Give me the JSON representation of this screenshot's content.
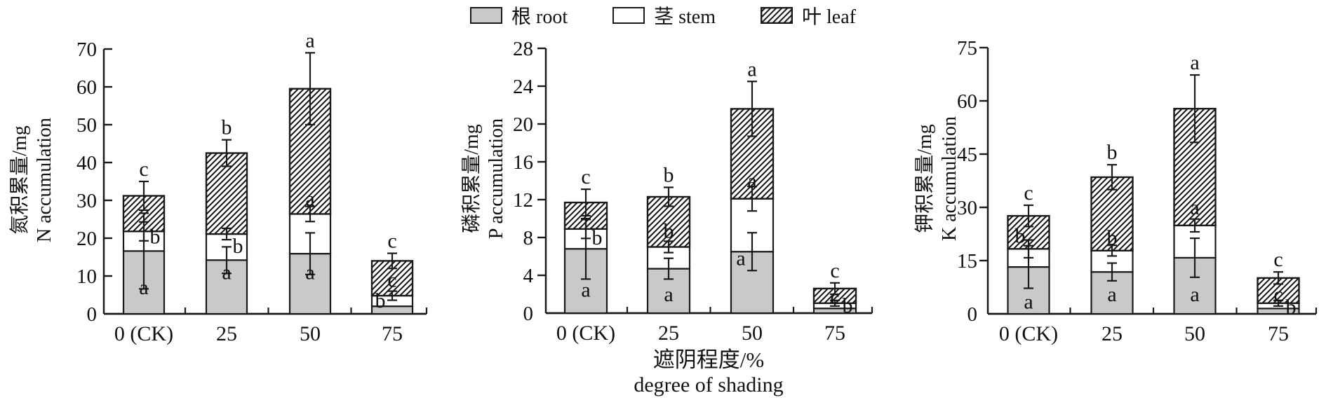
{
  "legend": {
    "items": [
      {
        "label": "根 root",
        "swatch": "gray"
      },
      {
        "label": "茎 stem",
        "swatch": "white"
      },
      {
        "label": "叶 leaf",
        "swatch": "hatch"
      }
    ]
  },
  "colors": {
    "line": "#1a1a1a",
    "root_fill": "#c9c9c9",
    "stem_fill": "#ffffff",
    "hatch_line": "#1a1a1a"
  },
  "x_axis_title": {
    "cn": "遮阴程度/%",
    "en": "degree of shading"
  },
  "chart_data": [
    {
      "type": "bar",
      "stacked": true,
      "y_title_cn": "氮积累量/mg",
      "y_title_en": "N accumulation",
      "ylim": [
        0,
        70
      ],
      "yticks": [
        0,
        10,
        20,
        30,
        40,
        50,
        60,
        70
      ],
      "categories": [
        "0 (CK)",
        "25",
        "50",
        "75"
      ],
      "series_names": [
        "root",
        "stem",
        "leaf"
      ],
      "bars": [
        {
          "category": "0 (CK)",
          "root": 16.6,
          "stem": 5.2,
          "leaf": 9.4,
          "err_root": 10.0,
          "err_stem": 2.5,
          "err_total": 3.8,
          "top_letter": "c",
          "letters": [
            {
              "at": 7.0,
              "text": "a",
              "dx": 0
            },
            {
              "at": 20.5,
              "text": "b",
              "dx": 16
            }
          ]
        },
        {
          "category": "25",
          "root": 14.2,
          "stem": 6.9,
          "leaf": 21.4,
          "err_root": 3.5,
          "err_stem": 1.5,
          "err_total": 3.5,
          "top_letter": "b",
          "letters": [
            {
              "at": 11.0,
              "text": "a",
              "dx": 0
            },
            {
              "at": 18.0,
              "text": "b",
              "dx": 16
            }
          ]
        },
        {
          "category": "50",
          "root": 15.9,
          "stem": 10.5,
          "leaf": 33.1,
          "err_root": 5.5,
          "err_stem": 2.0,
          "err_total": 9.5,
          "top_letter": "a",
          "letters": [
            {
              "at": 11.0,
              "text": "a",
              "dx": 0
            },
            {
              "at": 30.5,
              "text": "a",
              "dx": 0
            }
          ]
        },
        {
          "category": "75",
          "root": 2.0,
          "stem": 2.8,
          "leaf": 9.2,
          "err_stem": 1.2,
          "err_total": 2.0,
          "top_letter": "c",
          "letters": [
            {
              "at": 3.5,
              "text": "b",
              "dx": -17
            },
            {
              "at": 9.0,
              "text": "c",
              "dx": 0
            }
          ]
        }
      ]
    },
    {
      "type": "bar",
      "stacked": true,
      "y_title_cn": "磷积累量/mg",
      "y_title_en": "P accumulation",
      "ylim": [
        0,
        28
      ],
      "yticks": [
        0,
        4,
        8,
        12,
        16,
        20,
        24,
        28
      ],
      "categories": [
        "0 (CK)",
        "25",
        "50",
        "75"
      ],
      "series_names": [
        "root",
        "stem",
        "leaf"
      ],
      "bars": [
        {
          "category": "0 (CK)",
          "root": 6.8,
          "stem": 2.1,
          "leaf": 2.8,
          "err_root": 3.2,
          "err_stem": 1.0,
          "err_total": 1.4,
          "top_letter": "c",
          "letters": [
            {
              "at": 2.5,
              "text": "a",
              "dx": 0
            },
            {
              "at": 8.0,
              "text": "b",
              "dx": 16
            }
          ]
        },
        {
          "category": "25",
          "root": 4.7,
          "stem": 2.3,
          "leaf": 5.3,
          "err_root": 1.1,
          "err_stem": 0.6,
          "err_total": 1.0,
          "top_letter": "b",
          "letters": [
            {
              "at": 2.0,
              "text": "a",
              "dx": 0
            },
            {
              "at": 8.7,
              "text": "b",
              "dx": 0
            }
          ]
        },
        {
          "category": "50",
          "root": 6.5,
          "stem": 5.6,
          "leaf": 9.5,
          "err_root": 2.0,
          "err_stem": 1.3,
          "err_total": 2.9,
          "top_letter": "a",
          "letters": [
            {
              "at": 5.8,
              "text": "a",
              "dx": -16
            },
            {
              "at": 14.0,
              "text": "a",
              "dx": 0
            }
          ]
        },
        {
          "category": "75",
          "root": 0.5,
          "stem": 0.55,
          "leaf": 1.55,
          "err_stem": 0.3,
          "err_total": 0.6,
          "top_letter": "c",
          "letters": [
            {
              "at": 1.7,
              "text": "c",
              "dx": 0
            },
            {
              "at": 0.8,
              "text": "b",
              "dx": 18
            }
          ]
        }
      ]
    },
    {
      "type": "bar",
      "stacked": true,
      "y_title_cn": "钾积累量/mg",
      "y_title_en": "K accumulation",
      "ylim": [
        0,
        75
      ],
      "yticks": [
        0,
        15,
        30,
        45,
        60,
        75
      ],
      "categories": [
        "0 (CK)",
        "25",
        "50",
        "75"
      ],
      "series_names": [
        "root",
        "stem",
        "leaf"
      ],
      "bars": [
        {
          "category": "0 (CK)",
          "root": 13.2,
          "stem": 5.1,
          "leaf": 9.3,
          "err_root": 6.0,
          "err_stem": 2.5,
          "err_total": 3.0,
          "top_letter": "c",
          "letters": [
            {
              "at": 3.5,
              "text": "a",
              "dx": 0
            },
            {
              "at": 22.0,
              "text": "b",
              "dx": -12
            }
          ]
        },
        {
          "category": "25",
          "root": 11.8,
          "stem": 6.0,
          "leaf": 20.7,
          "err_root": 2.5,
          "err_stem": 1.5,
          "err_total": 3.5,
          "top_letter": "b",
          "letters": [
            {
              "at": 5.5,
              "text": "a",
              "dx": 0
            },
            {
              "at": 21.5,
              "text": "b",
              "dx": 0
            }
          ]
        },
        {
          "category": "50",
          "root": 15.8,
          "stem": 9.1,
          "leaf": 32.9,
          "err_root": 5.5,
          "err_stem": 1.8,
          "err_total": 9.5,
          "top_letter": "a",
          "letters": [
            {
              "at": 5.5,
              "text": "a",
              "dx": 0
            },
            {
              "at": 30.0,
              "text": "a",
              "dx": 0
            }
          ]
        },
        {
          "category": "75",
          "root": 1.5,
          "stem": 1.5,
          "leaf": 7.1,
          "err_stem": 0.8,
          "err_total": 1.7,
          "top_letter": "c",
          "letters": [
            {
              "at": 5.5,
              "text": "c",
              "dx": 0
            },
            {
              "at": 2.0,
              "text": "b",
              "dx": 18
            }
          ]
        }
      ]
    }
  ]
}
